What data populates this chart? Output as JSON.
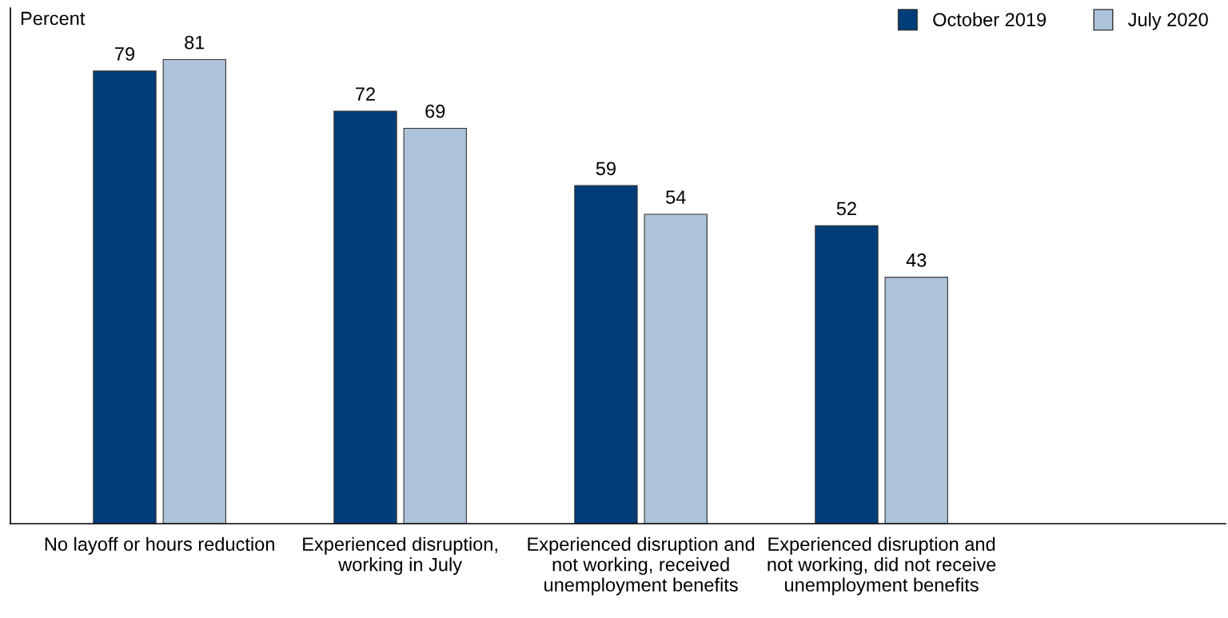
{
  "chart_data": {
    "type": "bar",
    "ylabel": "Percent",
    "categories": [
      "No layoff or hours reduction",
      "Experienced disruption,\nworking in July",
      "Experienced disruption and\nnot working, received\nunemployment benefits",
      "Experienced disruption and\nnot working, did not receive\nunemployment benefits"
    ],
    "series": [
      {
        "name": "October 2019",
        "color": "#003d79",
        "values": [
          79,
          72,
          59,
          52
        ]
      },
      {
        "name": "July 2020",
        "color": "#adc3da",
        "values": [
          81,
          69,
          54,
          43
        ]
      }
    ],
    "ylim": [
      0,
      90
    ],
    "tick_labels": "x",
    "data_labels": true,
    "legend": "top right",
    "grid": false
  }
}
